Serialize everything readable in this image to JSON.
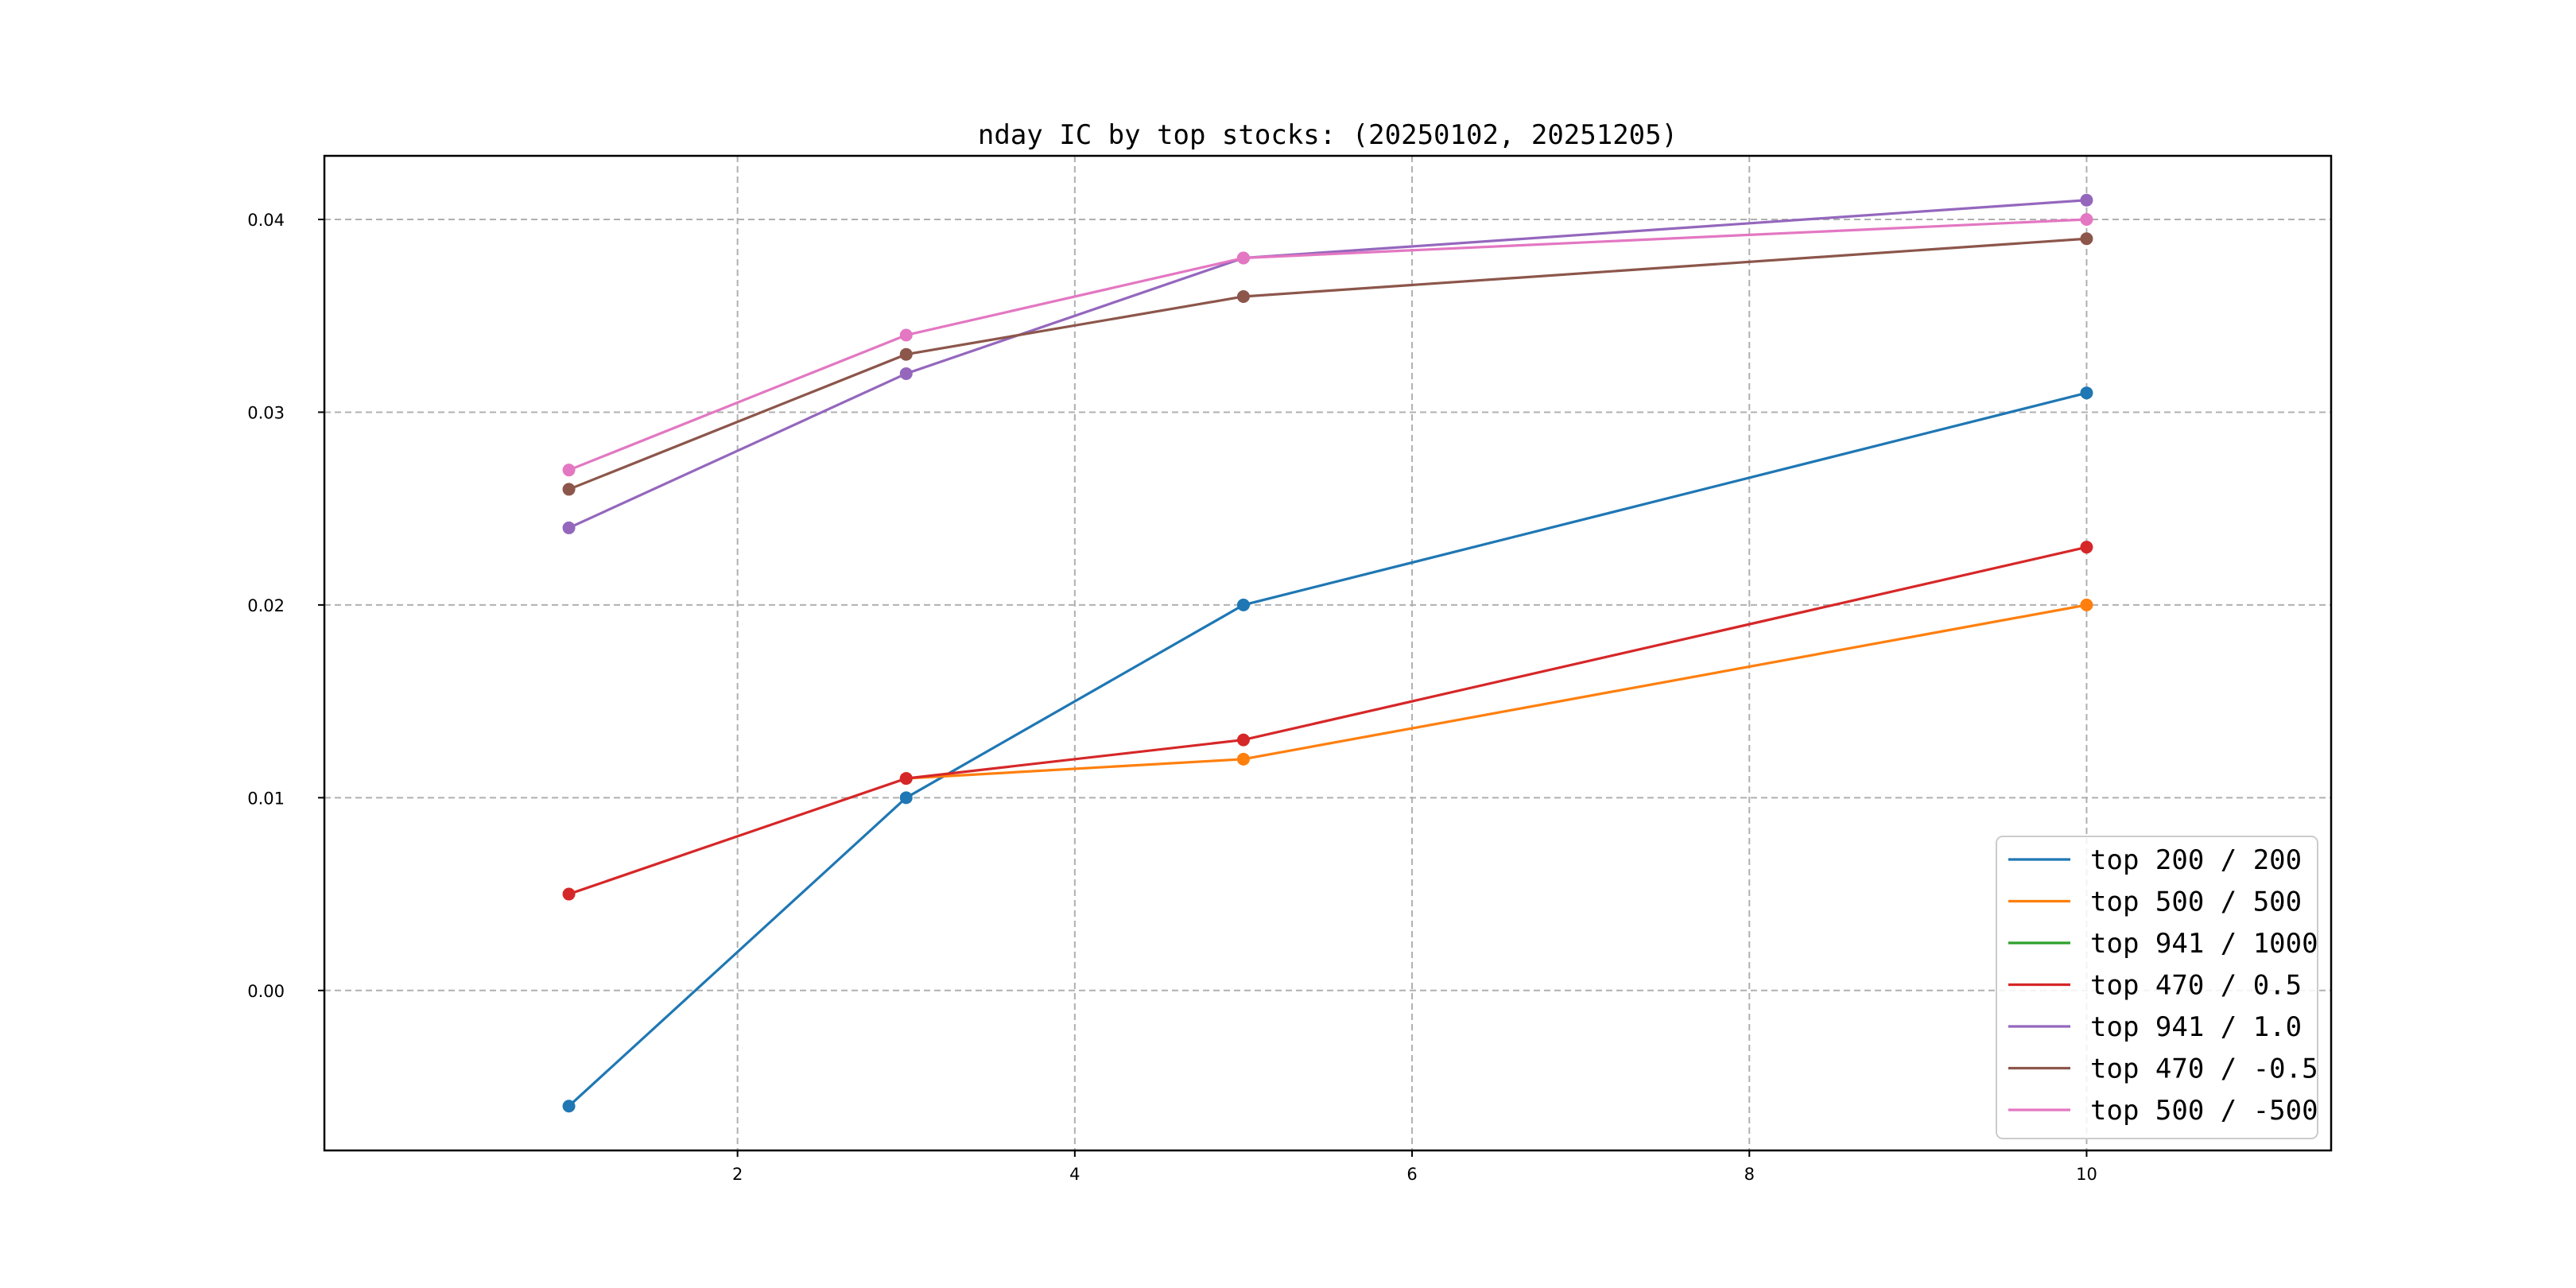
{
  "chart_data": {
    "type": "line",
    "title": "nday IC by top stocks: (20250102, 20251205)",
    "xlabel": "",
    "ylabel": "",
    "x": [
      1,
      3,
      5,
      10
    ],
    "xlim": [
      -0.45,
      11.45
    ],
    "ylim": [
      -0.0083,
      0.0433
    ],
    "xticks": [
      2,
      4,
      6,
      8,
      10
    ],
    "yticks": [
      0.0,
      0.01,
      0.02,
      0.03,
      0.04
    ],
    "xtick_labels": [
      "2",
      "4",
      "6",
      "8",
      "10"
    ],
    "ytick_labels": [
      "0.00",
      "0.01",
      "0.02",
      "0.03",
      "0.04"
    ],
    "grid": true,
    "legend_position": "lower-right",
    "series": [
      {
        "name": "top 200 / 200",
        "color": "#1f77b4",
        "values": [
          -0.006,
          0.01,
          0.02,
          0.031
        ],
        "markers": true
      },
      {
        "name": "top 500 / 500",
        "color": "#ff7f0e",
        "values": [
          null,
          0.011,
          0.012,
          0.02
        ],
        "markers": true
      },
      {
        "name": "top 941 / 1000",
        "color": "#2ca02c",
        "values": [
          null,
          null,
          null,
          null
        ],
        "markers": false
      },
      {
        "name": "top 470 / 0.5",
        "color": "#d62728",
        "values": [
          0.005,
          0.011,
          0.013,
          0.023
        ],
        "markers": true
      },
      {
        "name": "top 941 / 1.0",
        "color": "#9467bd",
        "values": [
          0.024,
          0.032,
          0.038,
          0.041
        ],
        "markers": true
      },
      {
        "name": "top 470 / -0.5",
        "color": "#8c564b",
        "values": [
          0.026,
          0.033,
          0.036,
          0.039
        ],
        "markers": true
      },
      {
        "name": "top 500 / -500",
        "color": "#e377c2",
        "values": [
          0.027,
          0.034,
          0.038,
          0.04
        ],
        "markers": true
      }
    ]
  }
}
